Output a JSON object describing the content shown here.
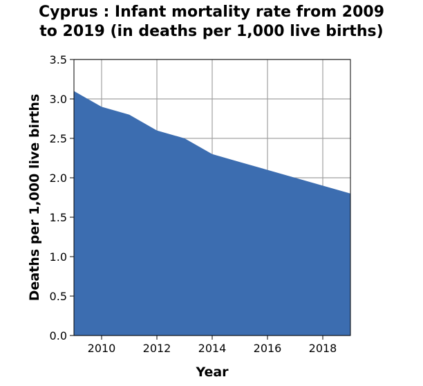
{
  "chart_data": {
    "type": "area",
    "title_lines": [
      "Cyprus : Infant mortality rate from 2009",
      "to 2019 (in deaths per 1,000 live births)"
    ],
    "xlabel": "Year",
    "ylabel": "Deaths per 1,000 live births",
    "x": [
      2009,
      2010,
      2011,
      2012,
      2013,
      2014,
      2015,
      2016,
      2017,
      2018,
      2019
    ],
    "series": [
      {
        "values": [
          3.1,
          2.9,
          2.8,
          2.6,
          2.5,
          2.3,
          2.2,
          2.1,
          2.0,
          1.9,
          1.8
        ]
      }
    ],
    "xlim": [
      2009,
      2019
    ],
    "ylim": [
      0,
      3.5
    ],
    "xticks": [
      2010,
      2012,
      2014,
      2016,
      2018
    ],
    "yticks": [
      0.0,
      0.5,
      1.0,
      1.5,
      2.0,
      2.5,
      3.0,
      3.5
    ],
    "ytick_labels": [
      "0.0",
      "0.5",
      "1.0",
      "1.5",
      "2.0",
      "2.5",
      "3.0",
      "3.5"
    ],
    "grid": true,
    "fill_color": "#3c6db0",
    "grid_color": "#a0a0a0"
  }
}
